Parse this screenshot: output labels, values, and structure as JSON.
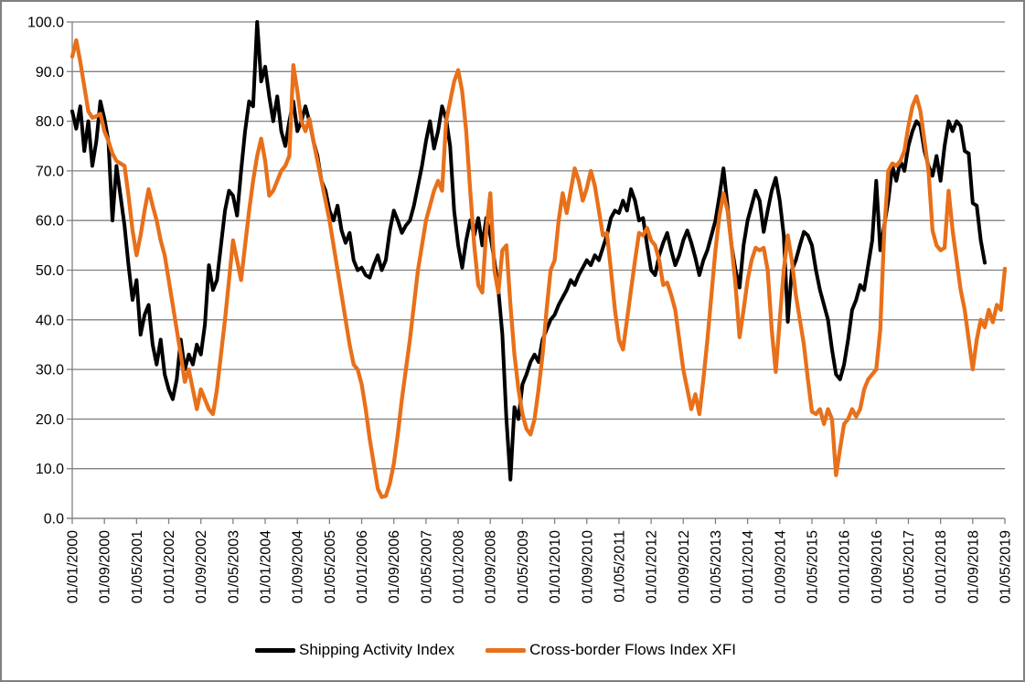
{
  "chart_data": {
    "type": "line",
    "title": "",
    "x_frequency": "monthly",
    "x_start": "01/01/2000",
    "x_end": "01/05/2019",
    "x_tick_every_n_months": 8,
    "x_tick_labels": [
      "01/01/2000",
      "01/09/2000",
      "01/05/2001",
      "01/01/2002",
      "01/09/2002",
      "01/05/2003",
      "01/01/2004",
      "01/09/2004",
      "01/05/2005",
      "01/01/2006",
      "01/09/2006",
      "01/05/2007",
      "01/01/2008",
      "01/09/2008",
      "01/05/2009",
      "01/01/2010",
      "01/09/2010",
      "01/05/2011",
      "01/01/2012",
      "01/09/2012",
      "01/05/2013",
      "01/01/2014",
      "01/09/2014",
      "01/05/2015",
      "01/01/2016",
      "01/09/2016",
      "01/05/2017",
      "01/01/2018",
      "01/09/2018",
      "01/05/2019"
    ],
    "ylim": [
      0,
      100
    ],
    "y_tick_step": 10,
    "y_tick_labels": [
      "100.0",
      "90.0",
      "80.0",
      "70.0",
      "60.0",
      "50.0",
      "40.0",
      "30.0",
      "20.0",
      "10.0",
      "0.0"
    ],
    "grid": "horizontal",
    "grid_color": "#808080",
    "axis_color": "#808080",
    "legend_position": "bottom-center",
    "series": [
      {
        "name": "Shipping Activity Index",
        "color": "#000000",
        "values": [
          82,
          78.5,
          83,
          74,
          80,
          71,
          76,
          84,
          80.5,
          76,
          60,
          71,
          65,
          59,
          51,
          44,
          48,
          37,
          41,
          43,
          35,
          31,
          36,
          29,
          26,
          24,
          28,
          36,
          30,
          33,
          31,
          35,
          33,
          39,
          51,
          46,
          48,
          55,
          62,
          66,
          65,
          61,
          70,
          78,
          84,
          83,
          100,
          88,
          91,
          85,
          80,
          85,
          78,
          75,
          80,
          84,
          78,
          80,
          83,
          80,
          76,
          73,
          68,
          66,
          62,
          60,
          63,
          58,
          55.5,
          57.5,
          52,
          50,
          50.5,
          49,
          48.5,
          51,
          53,
          50,
          52,
          58,
          62,
          60,
          57.5,
          59,
          60,
          63,
          67,
          71,
          76,
          80,
          74.5,
          78,
          83,
          80.5,
          75,
          62,
          55,
          50.5,
          56,
          60,
          57,
          60.5,
          55,
          60.5,
          57,
          52,
          46,
          37,
          20,
          7.8,
          22.4,
          20,
          27,
          29,
          31.5,
          33,
          31.5,
          36,
          38,
          40,
          41,
          43,
          44.5,
          46,
          48,
          47,
          49,
          50.5,
          52,
          51,
          53,
          52,
          54.5,
          57,
          60.5,
          62,
          61.5,
          64,
          62,
          66.3,
          64,
          60,
          60.5,
          55,
          50,
          49,
          53,
          55.5,
          57.5,
          54,
          51,
          53,
          56,
          58,
          55.5,
          52.5,
          49,
          52,
          54,
          57,
          60,
          65,
          70.5,
          63,
          55,
          50,
          46.5,
          55,
          60,
          63,
          66,
          64,
          57.7,
          62,
          66,
          68.6,
          64,
          57,
          39.6,
          50,
          52,
          55,
          57.7,
          57,
          55,
          50,
          46,
          43,
          40,
          34,
          29,
          28,
          31,
          36,
          42,
          44,
          47,
          46,
          51,
          56,
          68,
          54,
          59,
          64,
          71,
          68,
          72,
          70,
          75,
          78,
          80,
          79,
          74,
          71,
          69,
          73,
          68,
          75,
          80,
          78,
          80,
          79,
          74,
          73.5,
          63.5,
          63,
          56,
          51.5,
          null,
          null,
          null,
          null,
          null
        ]
      },
      {
        "name": "Cross-border Flows Index XFI",
        "color": "#E8701A",
        "values": [
          93,
          96.3,
          92,
          87,
          82,
          80.7,
          81,
          81.5,
          78,
          76,
          73.5,
          72,
          71.5,
          71,
          65,
          58,
          53,
          57,
          62,
          66.3,
          63,
          60,
          56,
          53,
          48,
          43,
          38,
          33,
          27.5,
          30,
          26,
          22,
          26,
          24,
          22,
          21,
          26,
          33,
          40,
          48,
          56,
          52,
          48,
          55,
          62,
          68,
          73,
          76.5,
          72,
          65,
          66,
          68,
          70,
          71,
          73,
          91.3,
          86,
          80,
          78,
          80.5,
          76,
          72,
          68,
          64,
          60,
          55,
          50,
          45,
          40,
          35,
          31,
          30,
          27,
          22,
          16,
          11,
          6,
          4.3,
          4.5,
          7,
          11,
          17,
          24,
          30,
          36,
          43,
          50,
          55,
          60,
          63,
          66,
          68,
          66,
          80,
          84,
          88,
          90.3,
          86,
          78,
          66,
          55,
          47,
          45.5,
          58,
          65.5,
          50,
          45.5,
          54,
          55,
          43,
          33,
          26,
          21,
          18,
          16.9,
          20,
          26,
          33,
          42,
          50,
          52,
          60,
          65.5,
          61.5,
          66,
          70.5,
          68,
          64,
          66.5,
          70,
          67,
          62,
          57,
          57.5,
          50,
          42,
          36,
          34,
          40,
          46,
          52,
          57.5,
          57,
          58.5,
          56,
          55,
          52,
          47,
          47.5,
          45,
          42,
          36,
          30,
          26,
          22,
          25,
          21,
          28,
          36,
          45,
          54,
          61,
          65.5,
          62,
          55,
          47,
          36.5,
          42,
          48,
          52,
          54.5,
          54,
          54.5,
          50,
          38,
          29.5,
          40,
          50,
          57,
          52,
          45,
          40,
          35,
          28,
          21.5,
          21,
          22,
          19,
          22,
          20,
          8.7,
          14,
          19,
          20,
          22,
          20.5,
          22,
          26,
          28,
          29,
          30,
          38,
          58,
          70,
          71.5,
          71,
          72,
          74,
          79,
          83,
          85,
          82,
          76,
          70,
          58,
          55,
          54,
          54.5,
          66,
          58,
          52,
          46,
          42,
          36,
          30,
          36,
          40,
          38.5,
          42,
          39.5,
          43,
          42,
          50.3
        ]
      }
    ]
  },
  "legend": {
    "items": [
      {
        "label": "Shipping Activity Index"
      },
      {
        "label": "Cross-border Flows Index XFI"
      }
    ]
  },
  "frame": {
    "border_color": "#7f7f7f",
    "background": "#ffffff"
  }
}
